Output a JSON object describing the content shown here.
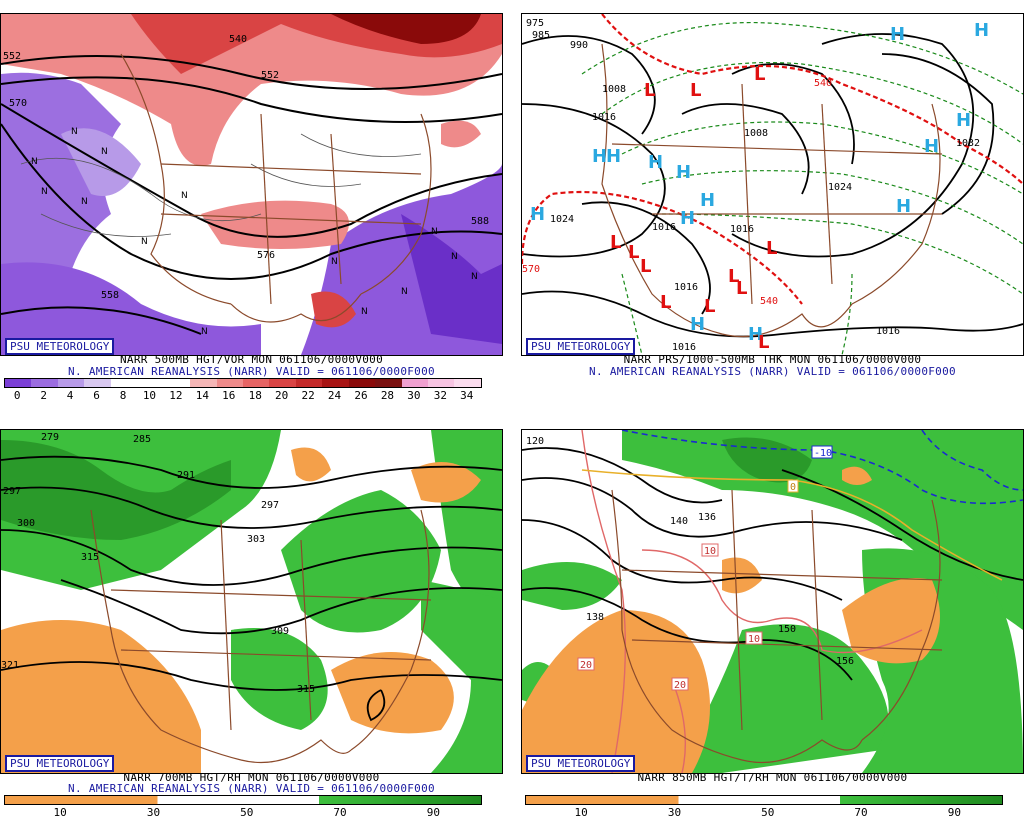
{
  "panels": {
    "vor500": {
      "brand": "PSU METEOROLOGY",
      "caption": "NARR 500MB HGT/VOR MON 061106/0000V000",
      "subcaption": "N. AMERICAN REANALYSIS (NARR) VALID = 061106/0000F000",
      "colorbar": {
        "labels": [
          "0",
          "2",
          "4",
          "6",
          "8",
          "10",
          "12",
          "14",
          "16",
          "18",
          "20",
          "22",
          "24",
          "26",
          "28",
          "30",
          "32",
          "34"
        ],
        "colors": [
          "#7b3fd6",
          "#9b6ce0",
          "#b79ae8",
          "#d8c8f0",
          "#ffffff",
          "#ffffff",
          "#ffffff",
          "#f5b6b6",
          "#ee8a8a",
          "#e66464",
          "#d94444",
          "#c42a2a",
          "#a81414",
          "#8a0a0a",
          "#7a1010",
          "#f0a0d0",
          "#f7c4e2",
          "#fbdcee"
        ]
      },
      "contour_labels": [
        "540",
        "552",
        "570",
        "552",
        "576",
        "558",
        "588"
      ],
      "symbols": [
        "N",
        "N",
        "N",
        "N",
        "N",
        "N",
        "N",
        "N",
        "N",
        "N",
        "N",
        "N",
        "N",
        "N"
      ]
    },
    "prs": {
      "brand": "PSU METEOROLOGY",
      "caption": "NARR PRS/1000-500MB THK MON 061106/0000V000",
      "subcaption": "N. AMERICAN REANALYSIS (NARR) VALID = 061106/0000F000",
      "contour_labels": [
        "975",
        "985",
        "990",
        "1016",
        "1016",
        "1008",
        "1024",
        "1024",
        "1016",
        "1016",
        "1016",
        "1016",
        "1032",
        "1008",
        "540",
        "540",
        "570"
      ],
      "highs": [
        "H",
        "H",
        "H",
        "H",
        "H",
        "H",
        "H",
        "H",
        "H",
        "H",
        "H",
        "H",
        "H",
        "H",
        "H",
        "H"
      ],
      "lows": [
        "L",
        "L",
        "L",
        "L",
        "L",
        "L",
        "L",
        "L",
        "L",
        "L",
        "L",
        "L",
        "L",
        "L"
      ]
    },
    "rh700": {
      "brand": "PSU METEOROLOGY",
      "caption": "NARR 700MB HGT/RH MON 061106/0000V000",
      "subcaption": "N. AMERICAN REANALYSIS (NARR) VALID = 061106/0000F000",
      "colorbar_labels": [
        "10",
        "30",
        "50",
        "70",
        "90"
      ],
      "contour_labels": [
        "279",
        "285",
        "297",
        "291",
        "300",
        "315",
        "297",
        "303",
        "309",
        "315",
        "321"
      ]
    },
    "t850": {
      "brand": "PSU METEOROLOGY",
      "caption": "NARR 850MB HGT/T/RH MON 061106/0000V000",
      "colorbar_labels": [
        "10",
        "30",
        "50",
        "70",
        "90"
      ],
      "contour_labels": [
        "120",
        "136",
        "140",
        "150",
        "156",
        "138",
        "10",
        "10",
        "20",
        "20",
        "-10",
        "0"
      ]
    }
  },
  "colors": {
    "brand": "#1a1aa0",
    "dry": "#f4a04a",
    "moist_light": "#3dbf3d",
    "moist_dark": "#2a9a2a",
    "border": "#8b4a2b",
    "high": "#2aa8e0",
    "low": "#e01010",
    "thickness": "#e01010",
    "isobar_dash": "#1a8a1a"
  }
}
